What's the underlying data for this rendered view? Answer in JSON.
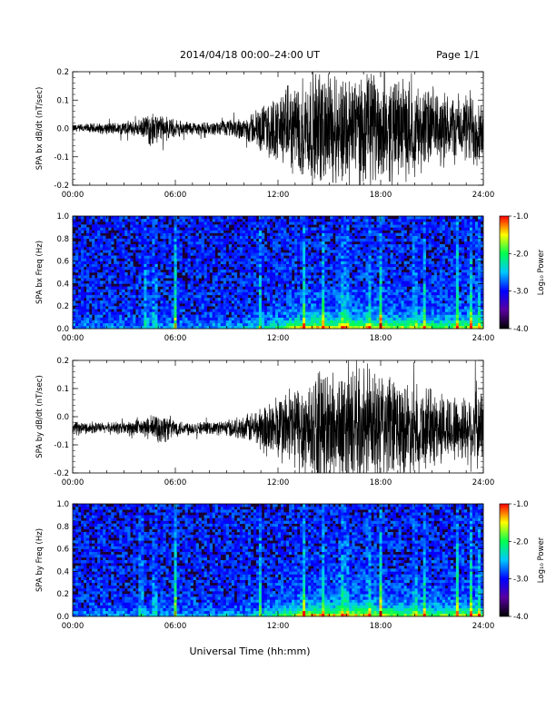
{
  "header": {
    "date_range": "2014/04/18  00:00–24:00 UT",
    "page": "Page 1/1"
  },
  "x_axis_title": "Universal Time (hh:mm)",
  "colors": {
    "trace": "#000000",
    "spectrogram_background": "#1a0033",
    "colorbar": [
      "#000000",
      "#5a00a0",
      "#0000ff",
      "#00c8ff",
      "#00ff50",
      "#ffff00",
      "#ff0000"
    ]
  },
  "chart_data": [
    {
      "type": "line",
      "ylabel": "SPA bx dB/dt (nT/sec)",
      "ylim": [
        -0.2,
        0.2
      ],
      "yticks": [
        "0.2",
        "0.1",
        "0.0",
        "-0.1",
        "-0.2"
      ],
      "xticks": [
        "00:00",
        "06:00",
        "12:00",
        "18:00",
        "24:00"
      ],
      "xlim_hours": [
        0,
        24
      ],
      "envelope": {
        "hours": [
          0,
          2,
          4,
          4.5,
          5,
          5.5,
          6,
          8,
          10,
          11,
          12,
          13,
          14,
          16,
          18,
          20,
          22,
          23,
          23.5,
          24
        ],
        "amplitude": [
          0.015,
          0.02,
          0.03,
          0.06,
          0.05,
          0.04,
          0.03,
          0.02,
          0.04,
          0.08,
          0.12,
          0.16,
          0.2,
          0.2,
          0.2,
          0.16,
          0.12,
          0.12,
          0.16,
          0.1
        ]
      },
      "baseline": 0.0
    },
    {
      "type": "heatmap",
      "ylabel": "SPA bx Freq (Hz)",
      "ylim": [
        0,
        1
      ],
      "yticks": [
        "1.0",
        "0.8",
        "0.6",
        "0.4",
        "0.2",
        "0.0"
      ],
      "xticks": [
        "00:00",
        "06:00",
        "12:00",
        "18:00",
        "24:00"
      ],
      "xlim_hours": [
        0,
        24
      ],
      "colorbar_label": "Log₁₀ Power",
      "colorbar_range": [
        -4.0,
        -1.0
      ],
      "colorbar_ticks": [
        "-1.0",
        "-2.0",
        "-3.0",
        "-4.0"
      ],
      "bursts_hours": [
        4.3,
        4.8,
        6.0,
        11.0,
        13.5,
        14.6,
        15.7,
        16.0,
        17.3,
        18.0,
        20.0,
        20.6,
        22.5,
        23.3,
        23.7
      ]
    },
    {
      "type": "line",
      "ylabel": "SPA by dB/dt (nT/sec)",
      "ylim": [
        -0.2,
        0.2
      ],
      "yticks": [
        "0.2",
        "0.1",
        "0.0",
        "-0.1",
        "-0.2"
      ],
      "xticks": [
        "00:00",
        "06:00",
        "12:00",
        "18:00",
        "24:00"
      ],
      "xlim_hours": [
        0,
        24
      ],
      "envelope": {
        "hours": [
          0,
          2,
          4,
          4.5,
          5,
          5.5,
          6,
          8,
          10,
          11,
          12,
          13,
          14,
          16,
          18,
          20,
          22,
          23,
          23.5,
          24
        ],
        "amplitude": [
          0.02,
          0.02,
          0.03,
          0.04,
          0.06,
          0.05,
          0.03,
          0.02,
          0.04,
          0.08,
          0.12,
          0.16,
          0.2,
          0.2,
          0.2,
          0.16,
          0.12,
          0.12,
          0.16,
          0.12
        ]
      },
      "baseline": -0.04
    },
    {
      "type": "heatmap",
      "ylabel": "SPA by Freq (Hz)",
      "ylim": [
        0,
        1
      ],
      "yticks": [
        "1.0",
        "0.8",
        "0.6",
        "0.4",
        "0.2",
        "0.0"
      ],
      "xticks": [
        "00:00",
        "06:00",
        "12:00",
        "18:00",
        "24:00"
      ],
      "xlim_hours": [
        0,
        24
      ],
      "colorbar_label": "Log₁₀ Power",
      "colorbar_range": [
        -4.0,
        -1.0
      ],
      "colorbar_ticks": [
        "-1.0",
        "-2.0",
        "-3.0",
        "-4.0"
      ],
      "bursts_hours": [
        4.0,
        4.8,
        6.0,
        11.0,
        13.5,
        14.6,
        15.7,
        16.0,
        17.3,
        18.0,
        20.0,
        20.6,
        22.5,
        23.3,
        23.7
      ]
    }
  ]
}
